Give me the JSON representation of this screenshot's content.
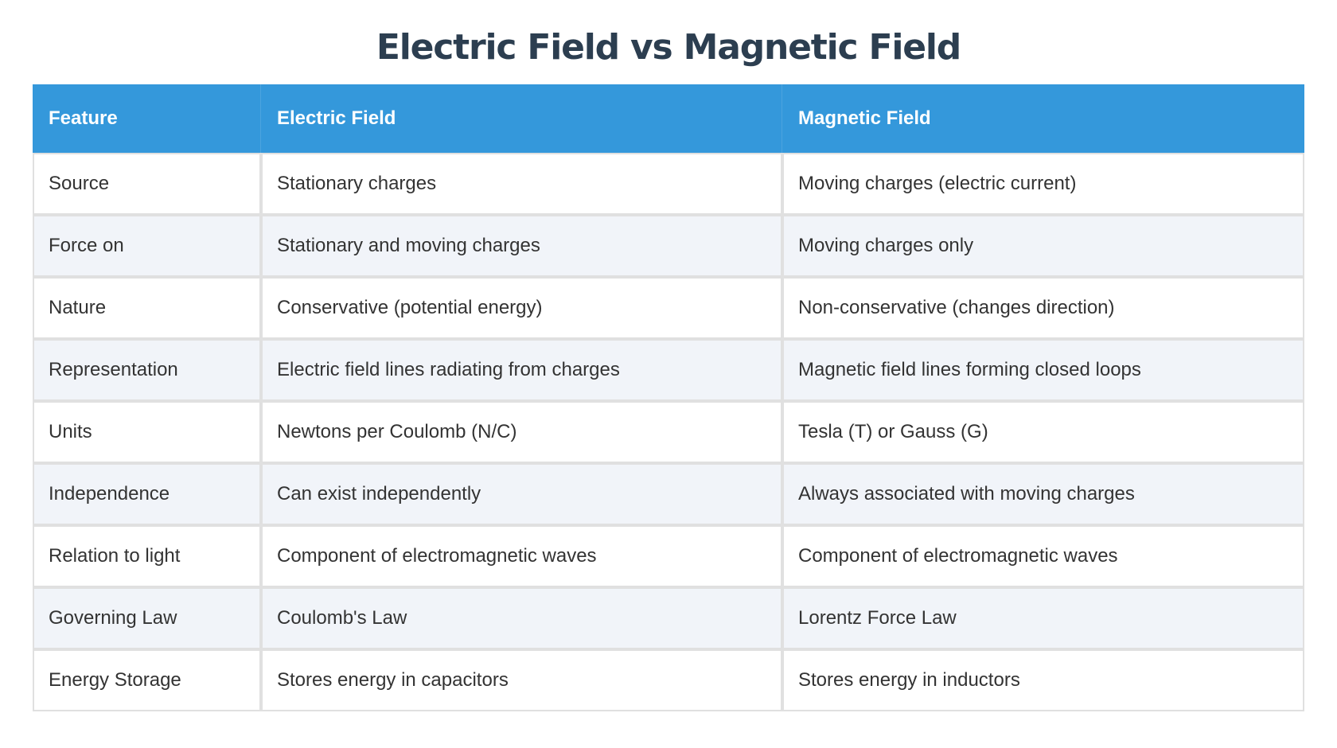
{
  "title": "Electric Field vs Magnetic Field",
  "colors": {
    "title": "#2c3e50",
    "header_bg": "#3498db",
    "header_text": "#ffffff",
    "row_alt_bg": "#f1f4f9",
    "border": "#e0e0e0",
    "text": "#333333"
  },
  "table": {
    "headers": [
      "Feature",
      "Electric Field",
      "Magnetic Field"
    ],
    "rows": [
      [
        "Source",
        "Stationary charges",
        "Moving charges (electric current)"
      ],
      [
        "Force on",
        "Stationary and moving charges",
        "Moving charges only"
      ],
      [
        "Nature",
        "Conservative (potential energy)",
        "Non-conservative (changes direction)"
      ],
      [
        "Representation",
        "Electric field lines radiating from charges",
        "Magnetic field lines forming closed loops"
      ],
      [
        "Units",
        "Newtons per Coulomb (N/C)",
        "Tesla (T) or Gauss (G)"
      ],
      [
        "Independence",
        "Can exist independently",
        "Always associated with moving charges"
      ],
      [
        "Relation to light",
        "Component of electromagnetic waves",
        "Component of electromagnetic waves"
      ],
      [
        "Governing Law",
        "Coulomb's Law",
        "Lorentz Force Law"
      ],
      [
        "Energy Storage",
        "Stores energy in capacitors",
        "Stores energy in inductors"
      ]
    ]
  }
}
